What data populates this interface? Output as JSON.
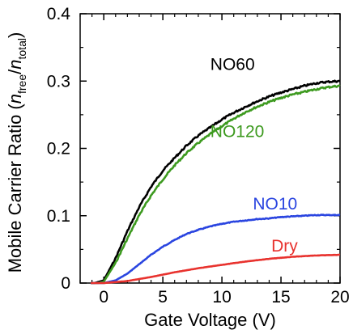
{
  "chart_data": {
    "type": "line",
    "xlabel": "Gate Voltage (V)",
    "ylabel": {
      "prefix": "Mobile Carrier Ratio (",
      "n1": "n",
      "sub1": "free",
      "slash": "/",
      "n2": "n",
      "sub2": "total",
      "suffix": ")"
    },
    "xlim": [
      -2,
      20
    ],
    "ylim": [
      0,
      0.4
    ],
    "xticks": [
      0,
      5,
      10,
      15,
      20
    ],
    "xtick_labels": [
      "0",
      "5",
      "10",
      "15",
      "20"
    ],
    "yticks": [
      0,
      0.1,
      0.2,
      0.3,
      0.4
    ],
    "ytick_labels": [
      "0",
      "0.1",
      "0.2",
      "0.3",
      "0.4"
    ],
    "grid": false,
    "legend": "inline labels next to each curve",
    "series": [
      {
        "name": "NO60",
        "color": "#000000",
        "x": [
          -0.8,
          0,
          1,
          2,
          3,
          4,
          5,
          6,
          7,
          8,
          9,
          10,
          11,
          12,
          13,
          14,
          15,
          16,
          17,
          18,
          19,
          20
        ],
        "y": [
          0,
          0.004,
          0.037,
          0.077,
          0.113,
          0.143,
          0.167,
          0.186,
          0.204,
          0.219,
          0.231,
          0.243,
          0.253,
          0.262,
          0.27,
          0.277,
          0.283,
          0.288,
          0.293,
          0.297,
          0.299,
          0.3
        ]
      },
      {
        "name": "NO120",
        "color": "#3d9a1f",
        "x": [
          -0.5,
          0,
          1,
          2,
          3,
          4,
          5,
          6,
          7,
          8,
          9,
          10,
          11,
          12,
          13,
          14,
          15,
          16,
          17,
          18,
          19,
          20
        ],
        "y": [
          0,
          0.002,
          0.03,
          0.066,
          0.101,
          0.13,
          0.154,
          0.175,
          0.193,
          0.208,
          0.221,
          0.233,
          0.244,
          0.254,
          0.262,
          0.269,
          0.275,
          0.28,
          0.284,
          0.288,
          0.291,
          0.293
        ]
      },
      {
        "name": "NO10",
        "color": "#2a45e0",
        "x": [
          0,
          1,
          2,
          3,
          4,
          5,
          6,
          7,
          8,
          9,
          10,
          11,
          12,
          13,
          14,
          15,
          16,
          17,
          18,
          19,
          20
        ],
        "y": [
          0,
          0.004,
          0.014,
          0.028,
          0.042,
          0.054,
          0.064,
          0.073,
          0.079,
          0.084,
          0.088,
          0.091,
          0.093,
          0.095,
          0.096,
          0.098,
          0.099,
          0.1,
          0.101,
          0.101,
          0.101
        ]
      },
      {
        "name": "Dry",
        "color": "#e8322e",
        "x": [
          0,
          2,
          4,
          6,
          8,
          10,
          12,
          14,
          16,
          18,
          20
        ],
        "y": [
          0,
          0.003,
          0.009,
          0.016,
          0.022,
          0.027,
          0.032,
          0.036,
          0.039,
          0.041,
          0.042
        ]
      }
    ]
  }
}
